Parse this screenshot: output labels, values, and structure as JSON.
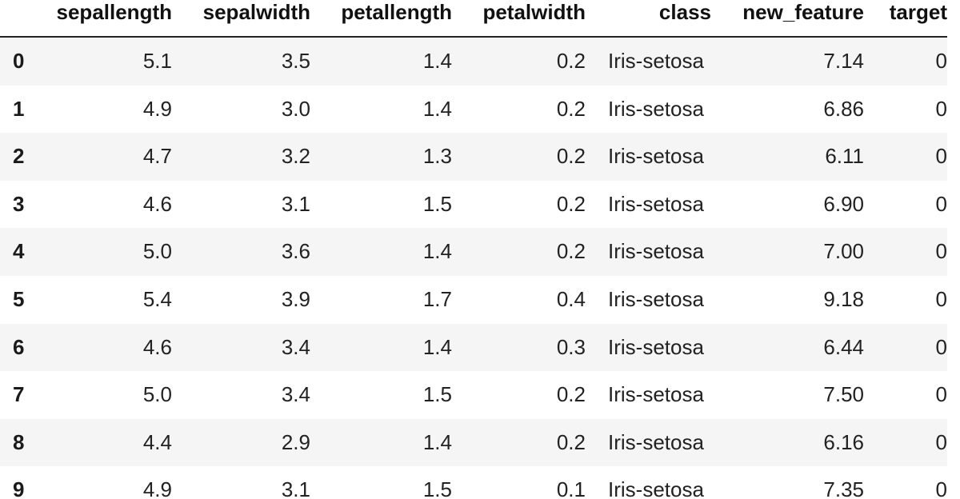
{
  "table": {
    "columns": [
      "sepallength",
      "sepalwidth",
      "petallength",
      "petalwidth",
      "class",
      "new_feature",
      "target"
    ],
    "rows": [
      {
        "index": "0",
        "cells": [
          "5.1",
          "3.5",
          "1.4",
          "0.2",
          "Iris-setosa",
          "7.14",
          "0"
        ]
      },
      {
        "index": "1",
        "cells": [
          "4.9",
          "3.0",
          "1.4",
          "0.2",
          "Iris-setosa",
          "6.86",
          "0"
        ]
      },
      {
        "index": "2",
        "cells": [
          "4.7",
          "3.2",
          "1.3",
          "0.2",
          "Iris-setosa",
          "6.11",
          "0"
        ]
      },
      {
        "index": "3",
        "cells": [
          "4.6",
          "3.1",
          "1.5",
          "0.2",
          "Iris-setosa",
          "6.90",
          "0"
        ]
      },
      {
        "index": "4",
        "cells": [
          "5.0",
          "3.6",
          "1.4",
          "0.2",
          "Iris-setosa",
          "7.00",
          "0"
        ]
      },
      {
        "index": "5",
        "cells": [
          "5.4",
          "3.9",
          "1.7",
          "0.4",
          "Iris-setosa",
          "9.18",
          "0"
        ]
      },
      {
        "index": "6",
        "cells": [
          "4.6",
          "3.4",
          "1.4",
          "0.3",
          "Iris-setosa",
          "6.44",
          "0"
        ]
      },
      {
        "index": "7",
        "cells": [
          "5.0",
          "3.4",
          "1.5",
          "0.2",
          "Iris-setosa",
          "7.50",
          "0"
        ]
      },
      {
        "index": "8",
        "cells": [
          "4.4",
          "2.9",
          "1.4",
          "0.2",
          "Iris-setosa",
          "6.16",
          "0"
        ]
      },
      {
        "index": "9",
        "cells": [
          "4.9",
          "3.1",
          "1.5",
          "0.1",
          "Iris-setosa",
          "7.35",
          "0"
        ]
      }
    ]
  }
}
